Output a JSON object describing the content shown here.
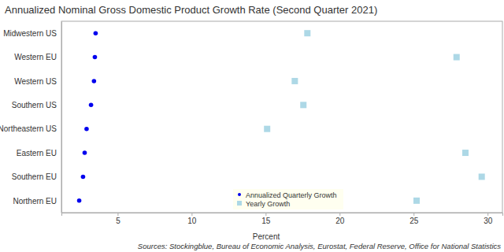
{
  "chart_data": {
    "type": "dot",
    "title": "Annualized Nominal Gross Domestic Product Growth Rate (Second Quarter 2021)",
    "x_label": "Percent",
    "annotations": [
      "Sources: Stockingblue, Bureau of Economic Analysis, Eurostat, Federal Reserve, Office for National Statistics"
    ],
    "categories": [
      "Midwestern US",
      "Western EU",
      "Western US",
      "Southern US",
      "Northeastern US",
      "Eastern EU",
      "Southern EU",
      "Northern EU"
    ],
    "series": [
      {
        "name": "Annualized Quarterly Growth",
        "color": "#0000ee",
        "marker": "circle",
        "values": [
          3.51,
          3.46,
          3.4,
          3.2,
          2.9,
          2.77,
          2.66,
          2.4
        ]
      },
      {
        "name": "Yearly Growth",
        "color": "#add8e6",
        "marker": "square",
        "values": [
          17.82,
          27.9,
          16.97,
          17.55,
          15.1,
          28.5,
          29.6,
          25.2
        ]
      }
    ],
    "xlim": [
      1.2,
      31
    ],
    "xticks": [
      5,
      10,
      15,
      20,
      25,
      30
    ],
    "grid": false,
    "legend": "bottom"
  }
}
